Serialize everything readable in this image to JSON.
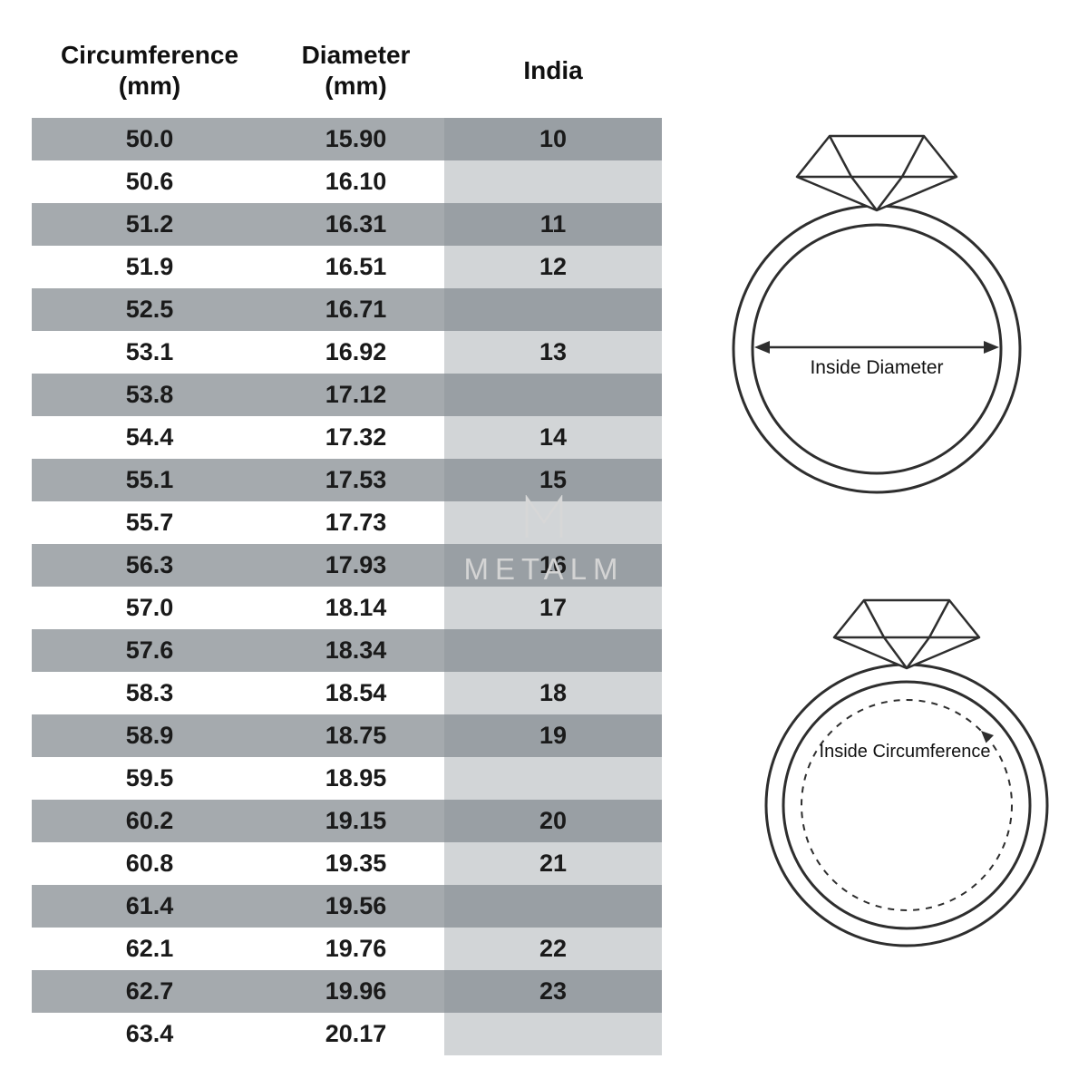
{
  "chart_data": {
    "type": "table",
    "columns": [
      {
        "label": "Circumference",
        "sub": "(mm)"
      },
      {
        "label": "Diameter",
        "sub": "(mm)"
      },
      {
        "label": "India",
        "sub": ""
      }
    ],
    "rows": [
      {
        "circumference": "50.0",
        "diameter": "15.90",
        "india": "10",
        "shaded": true
      },
      {
        "circumference": "50.6",
        "diameter": "16.10",
        "india": "",
        "shaded": false
      },
      {
        "circumference": "51.2",
        "diameter": "16.31",
        "india": "11",
        "shaded": true
      },
      {
        "circumference": "51.9",
        "diameter": "16.51",
        "india": "12",
        "shaded": false
      },
      {
        "circumference": "52.5",
        "diameter": "16.71",
        "india": "",
        "shaded": true
      },
      {
        "circumference": "53.1",
        "diameter": "16.92",
        "india": "13",
        "shaded": false
      },
      {
        "circumference": "53.8",
        "diameter": "17.12",
        "india": "",
        "shaded": true
      },
      {
        "circumference": "54.4",
        "diameter": "17.32",
        "india": "14",
        "shaded": false
      },
      {
        "circumference": "55.1",
        "diameter": "17.53",
        "india": "15",
        "shaded": true
      },
      {
        "circumference": "55.7",
        "diameter": "17.73",
        "india": "",
        "shaded": false
      },
      {
        "circumference": "56.3",
        "diameter": "17.93",
        "india": "16",
        "shaded": true
      },
      {
        "circumference": "57.0",
        "diameter": "18.14",
        "india": "17",
        "shaded": false
      },
      {
        "circumference": "57.6",
        "diameter": "18.34",
        "india": "",
        "shaded": true
      },
      {
        "circumference": "58.3",
        "diameter": "18.54",
        "india": "18",
        "shaded": false
      },
      {
        "circumference": "58.9",
        "diameter": "18.75",
        "india": "19",
        "shaded": true
      },
      {
        "circumference": "59.5",
        "diameter": "18.95",
        "india": "",
        "shaded": false
      },
      {
        "circumference": "60.2",
        "diameter": "19.15",
        "india": "20",
        "shaded": true
      },
      {
        "circumference": "60.8",
        "diameter": "19.35",
        "india": "21",
        "shaded": false
      },
      {
        "circumference": "61.4",
        "diameter": "19.56",
        "india": "",
        "shaded": true
      },
      {
        "circumference": "62.1",
        "diameter": "19.76",
        "india": "22",
        "shaded": false
      },
      {
        "circumference": "62.7",
        "diameter": "19.96",
        "india": "23",
        "shaded": true
      },
      {
        "circumference": "63.4",
        "diameter": "20.17",
        "india": "",
        "shaded": false
      }
    ]
  },
  "diagrams": {
    "inside_diameter": {
      "label": "Inside Diameter"
    },
    "inside_circumference": {
      "label": "Inside Circumference"
    }
  },
  "watermark": {
    "text": "METALM"
  },
  "colors": {
    "row_gray": "#a5aaae",
    "india_dark": "#999fa4",
    "india_light": "#d2d5d7",
    "text": "#1a1a1a",
    "line": "#2e2e2e",
    "watermark": "#d4d4d4"
  }
}
